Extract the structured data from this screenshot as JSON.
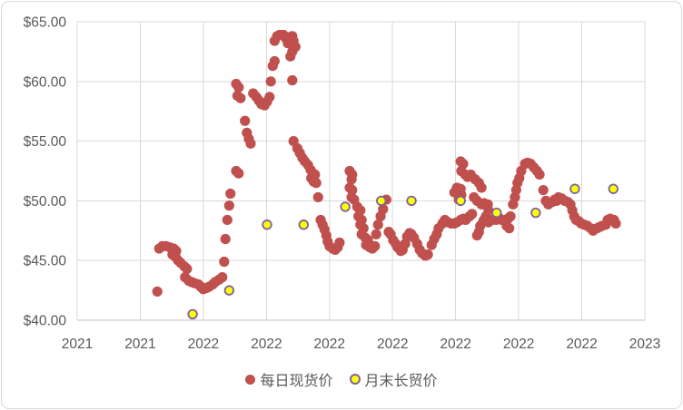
{
  "colors": {
    "daily_spot": "#C0504D",
    "monthly_contract_fill": "#FFFF00",
    "monthly_contract_outline": "#7D60A0",
    "gridline": "#D9D9D9",
    "axis_line": "#BFBFBF",
    "text": "#595959",
    "background": "#FFFFFF",
    "chart_border": "#D9D9D9"
  },
  "chart_data": {
    "type": "scatter",
    "title": "",
    "grid": true,
    "legend_position": "bottom",
    "x_axis": {
      "tick_labels": [
        "2021",
        "2021",
        "2022",
        "2022",
        "2022",
        "2022",
        "2022",
        "2022",
        "2022",
        "2023"
      ],
      "unit_note": "point x values are fractional tick-index units 0-9 along the date axis"
    },
    "y_axis": {
      "tick_labels": [
        "$40.00",
        "$45.00",
        "$50.00",
        "$55.00",
        "$60.00",
        "$65.00"
      ],
      "tick_values": [
        40,
        45,
        50,
        55,
        60,
        65
      ],
      "min": 40,
      "max": 65,
      "format": "$0.00"
    },
    "series": [
      {
        "name": "每日现货价",
        "marker": "circle",
        "fill": "#C0504D",
        "points": [
          [
            1.27,
            42.4
          ],
          [
            1.3,
            46.0
          ],
          [
            1.35,
            46.2
          ],
          [
            1.41,
            46.2
          ],
          [
            1.47,
            46.1
          ],
          [
            1.53,
            46.0
          ],
          [
            1.57,
            45.8
          ],
          [
            1.51,
            45.5
          ],
          [
            1.56,
            45.3
          ],
          [
            1.6,
            45.0
          ],
          [
            1.64,
            44.8
          ],
          [
            1.7,
            44.5
          ],
          [
            1.74,
            44.3
          ],
          [
            1.71,
            43.6
          ],
          [
            1.77,
            43.3
          ],
          [
            1.81,
            43.2
          ],
          [
            1.86,
            43.1
          ],
          [
            1.92,
            43.0
          ],
          [
            1.96,
            42.8
          ],
          [
            2.0,
            42.6
          ],
          [
            2.05,
            42.7
          ],
          [
            2.09,
            42.8
          ],
          [
            2.15,
            43.0
          ],
          [
            2.19,
            43.2
          ],
          [
            2.25,
            43.4
          ],
          [
            2.3,
            43.6
          ],
          [
            2.33,
            44.9
          ],
          [
            2.35,
            46.8
          ],
          [
            2.38,
            48.4
          ],
          [
            2.41,
            49.6
          ],
          [
            2.43,
            50.6
          ],
          [
            2.52,
            52.5
          ],
          [
            2.56,
            52.3
          ],
          [
            2.52,
            59.8
          ],
          [
            2.56,
            59.5
          ],
          [
            2.54,
            58.8
          ],
          [
            2.59,
            58.6
          ],
          [
            2.66,
            56.7
          ],
          [
            2.69,
            55.7
          ],
          [
            2.72,
            55.2
          ],
          [
            2.75,
            54.8
          ],
          [
            2.79,
            59.0
          ],
          [
            2.84,
            58.7
          ],
          [
            2.88,
            58.4
          ],
          [
            2.92,
            58.1
          ],
          [
            2.97,
            58.0
          ],
          [
            3.01,
            58.3
          ],
          [
            3.05,
            58.7
          ],
          [
            3.07,
            60.0
          ],
          [
            3.1,
            61.3
          ],
          [
            3.13,
            61.7
          ],
          [
            3.13,
            63.4
          ],
          [
            3.17,
            63.8
          ],
          [
            3.21,
            63.9
          ],
          [
            3.27,
            63.9
          ],
          [
            3.31,
            63.6
          ],
          [
            3.34,
            63.2
          ],
          [
            3.36,
            63.7
          ],
          [
            3.41,
            63.8
          ],
          [
            3.43,
            63.4
          ],
          [
            3.46,
            62.9
          ],
          [
            3.41,
            62.5
          ],
          [
            3.38,
            62.1
          ],
          [
            3.41,
            60.1
          ],
          [
            3.43,
            55.0
          ],
          [
            3.49,
            54.4
          ],
          [
            3.53,
            54.0
          ],
          [
            3.57,
            53.6
          ],
          [
            3.61,
            53.3
          ],
          [
            3.66,
            53.0
          ],
          [
            3.7,
            52.6
          ],
          [
            3.74,
            52.3
          ],
          [
            3.77,
            52.2
          ],
          [
            3.71,
            51.9
          ],
          [
            3.75,
            51.6
          ],
          [
            3.79,
            51.5
          ],
          [
            3.82,
            50.3
          ],
          [
            3.86,
            48.4
          ],
          [
            3.89,
            48.0
          ],
          [
            3.92,
            47.6
          ],
          [
            3.95,
            47.1
          ],
          [
            3.97,
            46.6
          ],
          [
            4.0,
            46.2
          ],
          [
            4.05,
            46.0
          ],
          [
            4.09,
            45.9
          ],
          [
            4.13,
            46.1
          ],
          [
            4.16,
            46.5
          ],
          [
            4.32,
            52.5
          ],
          [
            4.36,
            52.2
          ],
          [
            4.35,
            51.8
          ],
          [
            4.32,
            51.1
          ],
          [
            4.36,
            50.9
          ],
          [
            4.35,
            50.3
          ],
          [
            4.39,
            50.1
          ],
          [
            4.44,
            49.5
          ],
          [
            4.49,
            49.2
          ],
          [
            4.46,
            48.7
          ],
          [
            4.51,
            48.4
          ],
          [
            4.49,
            48.0
          ],
          [
            4.54,
            47.7
          ],
          [
            4.51,
            47.2
          ],
          [
            4.57,
            46.9
          ],
          [
            4.61,
            46.7
          ],
          [
            4.58,
            46.3
          ],
          [
            4.64,
            46.1
          ],
          [
            4.68,
            46.0
          ],
          [
            4.72,
            46.2
          ],
          [
            4.74,
            47.2
          ],
          [
            4.77,
            48.0
          ],
          [
            4.81,
            48.7
          ],
          [
            4.85,
            49.3
          ],
          [
            4.9,
            50.1
          ],
          [
            4.94,
            47.4
          ],
          [
            4.97,
            47.2
          ],
          [
            5.01,
            46.7
          ],
          [
            5.05,
            46.4
          ],
          [
            5.08,
            46.1
          ],
          [
            5.13,
            45.8
          ],
          [
            5.16,
            45.9
          ],
          [
            5.2,
            46.4
          ],
          [
            5.23,
            47.0
          ],
          [
            5.27,
            47.3
          ],
          [
            5.3,
            47.2
          ],
          [
            5.34,
            46.9
          ],
          [
            5.39,
            46.4
          ],
          [
            5.43,
            45.9
          ],
          [
            5.47,
            45.6
          ],
          [
            5.52,
            45.4
          ],
          [
            5.56,
            45.5
          ],
          [
            5.62,
            46.3
          ],
          [
            5.66,
            46.8
          ],
          [
            5.7,
            47.2
          ],
          [
            5.73,
            47.7
          ],
          [
            5.79,
            48.1
          ],
          [
            5.83,
            48.4
          ],
          [
            5.88,
            48.2
          ],
          [
            5.93,
            48.1
          ],
          [
            5.98,
            48.1
          ],
          [
            6.02,
            48.2
          ],
          [
            6.08,
            48.4
          ],
          [
            6.12,
            48.5
          ],
          [
            6.16,
            48.4
          ],
          [
            6.22,
            48.7
          ],
          [
            6.26,
            48.9
          ],
          [
            5.98,
            50.7
          ],
          [
            6.02,
            51.1
          ],
          [
            6.08,
            51.0
          ],
          [
            6.09,
            50.5
          ],
          [
            6.05,
            50.1
          ],
          [
            6.08,
            53.3
          ],
          [
            6.12,
            53.1
          ],
          [
            6.09,
            52.5
          ],
          [
            6.15,
            52.2
          ],
          [
            6.19,
            52.0
          ],
          [
            6.24,
            52.2
          ],
          [
            6.31,
            51.8
          ],
          [
            6.37,
            51.5
          ],
          [
            6.41,
            51.1
          ],
          [
            6.29,
            50.3
          ],
          [
            6.34,
            50.0
          ],
          [
            6.41,
            49.7
          ],
          [
            6.45,
            49.8
          ],
          [
            6.51,
            49.7
          ],
          [
            6.52,
            49.2
          ],
          [
            6.48,
            48.7
          ],
          [
            6.44,
            48.3
          ],
          [
            6.39,
            47.9
          ],
          [
            6.37,
            47.4
          ],
          [
            6.34,
            47.1
          ],
          [
            6.45,
            48.4
          ],
          [
            6.52,
            48.2
          ],
          [
            6.58,
            48.4
          ],
          [
            6.64,
            48.4
          ],
          [
            6.68,
            48.6
          ],
          [
            6.73,
            48.4
          ],
          [
            6.78,
            48.4
          ],
          [
            6.83,
            48.5
          ],
          [
            6.87,
            48.7
          ],
          [
            6.81,
            47.9
          ],
          [
            6.85,
            47.7
          ],
          [
            6.91,
            49.7
          ],
          [
            6.94,
            50.3
          ],
          [
            6.96,
            50.9
          ],
          [
            6.98,
            51.5
          ],
          [
            7.01,
            51.9
          ],
          [
            7.04,
            52.5
          ],
          [
            7.1,
            53.1
          ],
          [
            7.14,
            53.2
          ],
          [
            7.19,
            53.1
          ],
          [
            7.24,
            52.8
          ],
          [
            7.29,
            52.5
          ],
          [
            7.33,
            52.2
          ],
          [
            7.39,
            50.9
          ],
          [
            7.43,
            50.0
          ],
          [
            7.47,
            49.7
          ],
          [
            7.53,
            49.9
          ],
          [
            7.57,
            50.1
          ],
          [
            7.6,
            50.0
          ],
          [
            7.63,
            50.3
          ],
          [
            7.68,
            50.2
          ],
          [
            7.73,
            50.0
          ],
          [
            7.78,
            49.9
          ],
          [
            7.82,
            49.7
          ],
          [
            7.85,
            49.2
          ],
          [
            7.88,
            48.7
          ],
          [
            7.91,
            48.4
          ],
          [
            7.95,
            48.3
          ],
          [
            7.99,
            48.1
          ],
          [
            8.04,
            48.0
          ],
          [
            8.09,
            47.9
          ],
          [
            8.14,
            47.7
          ],
          [
            8.18,
            47.5
          ],
          [
            8.24,
            47.7
          ],
          [
            8.28,
            47.8
          ],
          [
            8.32,
            47.9
          ],
          [
            8.38,
            48.0
          ],
          [
            8.41,
            48.4
          ],
          [
            8.45,
            48.5
          ],
          [
            8.51,
            48.4
          ],
          [
            8.54,
            48.1
          ]
        ]
      },
      {
        "name": "月末长贸价",
        "marker": "circle",
        "fill": "#FFFF00",
        "outline": "#7D60A0",
        "points": [
          [
            1.83,
            40.5
          ],
          [
            2.41,
            42.5
          ],
          [
            3.01,
            48.0
          ],
          [
            3.59,
            48.0
          ],
          [
            4.25,
            49.5
          ],
          [
            4.82,
            50.0
          ],
          [
            5.3,
            50.0
          ],
          [
            6.08,
            50.0
          ],
          [
            6.65,
            49.0
          ],
          [
            7.27,
            49.0
          ],
          [
            7.89,
            51.0
          ],
          [
            8.5,
            51.0
          ]
        ]
      }
    ]
  }
}
